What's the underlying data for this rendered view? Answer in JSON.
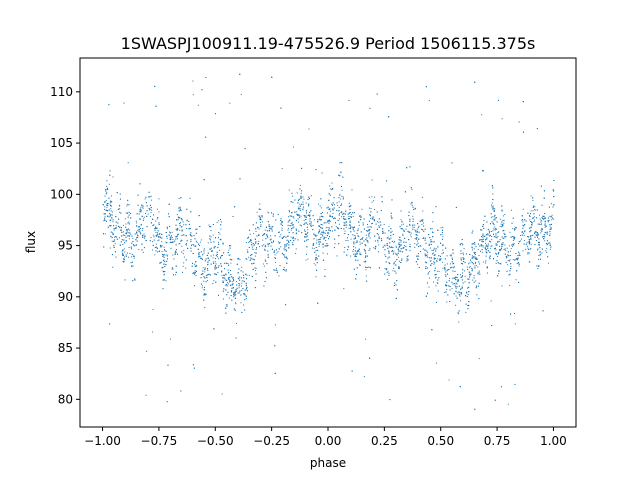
{
  "chart_data": {
    "type": "scatter",
    "title": "1SWASPJ100911.19-475526.9 Period 1506115.375s",
    "xlabel": "phase",
    "ylabel": "flux",
    "xlim": [
      -1.1,
      1.1
    ],
    "ylim": [
      77.3,
      113.3
    ],
    "xticks": [
      -1.0,
      -0.75,
      -0.5,
      -0.25,
      0.0,
      0.25,
      0.5,
      0.75,
      1.0
    ],
    "xtick_labels": [
      "−1.00",
      "−0.75",
      "−0.50",
      "−0.25",
      "0.00",
      "0.25",
      "0.50",
      "0.75",
      "1.00"
    ],
    "yticks": [
      80,
      85,
      90,
      95,
      100,
      105,
      110
    ],
    "ytick_labels": [
      "80",
      "85",
      "90",
      "95",
      "100",
      "105",
      "110"
    ],
    "grid": false,
    "point_color": "#1f77b4",
    "series": [
      {
        "values_note": "dense phase-folded light curve, mirrored over [-1,1]",
        "x": [
          -1.0,
          -0.95,
          -0.9,
          -0.85,
          -0.8,
          -0.75,
          -0.7,
          -0.65,
          -0.6,
          -0.55,
          -0.5,
          -0.45,
          -0.4,
          -0.35,
          -0.3,
          -0.25,
          -0.2,
          -0.15,
          -0.1,
          -0.05,
          0.0,
          0.05,
          0.1,
          0.15,
          0.2,
          0.25,
          0.3,
          0.35,
          0.4,
          0.45,
          0.5,
          0.55,
          0.6,
          0.65,
          0.7,
          0.75,
          0.8,
          0.85,
          0.9,
          0.95,
          1.0
        ],
        "y": [
          98.5,
          96.5,
          97.0,
          95.5,
          98.0,
          95.0,
          96.0,
          95.5,
          95.0,
          94.0,
          94.5,
          91.0,
          91.5,
          94.0,
          95.0,
          95.5,
          96.0,
          97.0,
          97.5,
          96.5,
          97.0,
          97.5,
          97.0,
          96.0,
          96.5,
          95.5,
          95.0,
          96.0,
          95.5,
          95.0,
          94.0,
          91.0,
          92.0,
          94.0,
          95.0,
          95.5,
          96.0,
          95.0,
          96.0,
          96.5,
          98.5
        ]
      }
    ]
  }
}
